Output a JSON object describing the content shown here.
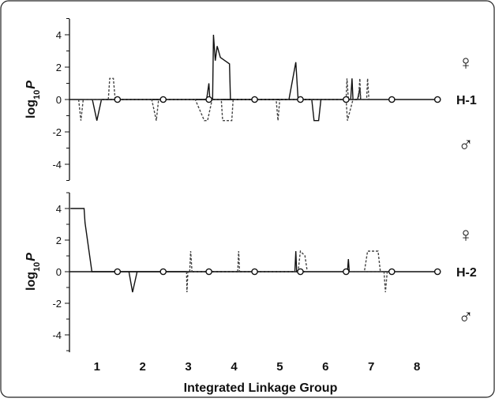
{
  "chart_data": {
    "type": "line",
    "xlabel": "Integrated Linkage Group",
    "groups": [
      "1",
      "2",
      "3",
      "4",
      "5",
      "6",
      "7",
      "8"
    ],
    "female_symbol": "♀",
    "male_symbol": "♂",
    "log_label": {
      "base": "log",
      "sub": "10",
      "var": "P"
    },
    "panels": [
      {
        "label": "H-1",
        "ylim": [
          -5,
          5
        ],
        "yticks": [
          "4",
          "2",
          "0",
          "-2",
          "-4"
        ],
        "series": [
          {
            "name": "female",
            "style": "solid",
            "points": [
              [
                3.4,
                0
              ],
              [
                3.45,
                1.0
              ],
              [
                3.47,
                0
              ],
              [
                3.53,
                0
              ],
              [
                3.55,
                4.0
              ],
              [
                3.59,
                2.4
              ],
              [
                3.63,
                3.3
              ],
              [
                3.7,
                2.6
              ],
              [
                3.8,
                2.4
              ],
              [
                3.9,
                2.2
              ],
              [
                3.92,
                0
              ],
              [
                5.2,
                0
              ],
              [
                5.35,
                2.3
              ],
              [
                5.4,
                0
              ],
              [
                6.55,
                0
              ],
              [
                6.58,
                1.3
              ],
              [
                6.6,
                0
              ],
              [
                6.7,
                0
              ],
              [
                6.75,
                0.7
              ],
              [
                6.77,
                0
              ]
            ]
          },
          {
            "name": "female",
            "style": "dashed",
            "points": [
              [
                1.25,
                0
              ],
              [
                1.28,
                1.3
              ],
              [
                1.36,
                1.3
              ],
              [
                1.4,
                0
              ],
              [
                6.45,
                0
              ],
              [
                6.47,
                1.3
              ],
              [
                6.5,
                0
              ],
              [
                6.72,
                0
              ],
              [
                6.75,
                1.3
              ],
              [
                6.77,
                0
              ],
              [
                6.9,
                0
              ],
              [
                6.92,
                1.3
              ],
              [
                6.95,
                0
              ]
            ]
          },
          {
            "name": "male",
            "style": "solid",
            "points": [
              [
                0.9,
                0
              ],
              [
                1.0,
                -1.3
              ],
              [
                1.1,
                0
              ],
              [
                5.7,
                0
              ],
              [
                5.75,
                -1.3
              ],
              [
                5.85,
                -1.3
              ],
              [
                5.9,
                0
              ]
            ]
          },
          {
            "name": "male",
            "style": "dashed",
            "points": [
              [
                0.6,
                0
              ],
              [
                0.65,
                -1.3
              ],
              [
                0.7,
                0
              ],
              [
                2.2,
                0
              ],
              [
                2.3,
                -1.3
              ],
              [
                2.35,
                0
              ],
              [
                3.15,
                0
              ],
              [
                3.35,
                -1.3
              ],
              [
                3.42,
                -1.3
              ],
              [
                3.52,
                0
              ],
              [
                3.72,
                0
              ],
              [
                3.75,
                -1.3
              ],
              [
                3.95,
                -1.3
              ],
              [
                3.98,
                0
              ],
              [
                4.92,
                0
              ],
              [
                4.96,
                -1.3
              ],
              [
                5.0,
                0
              ],
              [
                6.45,
                0
              ],
              [
                6.48,
                -1.3
              ],
              [
                6.6,
                0
              ]
            ]
          }
        ],
        "markers": [
          1.45,
          2.45,
          3.45,
          4.45,
          5.45,
          6.45,
          7.45,
          8.45
        ]
      },
      {
        "label": "H-2",
        "ylim": [
          -5,
          5
        ],
        "yticks": [
          "4",
          "2",
          "0",
          "-2",
          "-4"
        ],
        "series": [
          {
            "name": "female",
            "style": "solid",
            "points": [
              [
                0.42,
                4.0
              ],
              [
                0.72,
                4.0
              ],
              [
                0.74,
                3.1
              ],
              [
                0.89,
                0
              ],
              [
                5.33,
                0
              ],
              [
                5.35,
                1.3
              ],
              [
                5.37,
                0
              ],
              [
                6.48,
                0
              ],
              [
                6.5,
                0.8
              ],
              [
                6.52,
                0
              ]
            ]
          },
          {
            "name": "female",
            "style": "dashed",
            "points": [
              [
                3.03,
                0
              ],
              [
                3.05,
                1.3
              ],
              [
                3.08,
                0
              ],
              [
                4.08,
                0
              ],
              [
                4.1,
                1.3
              ],
              [
                4.12,
                0
              ],
              [
                5.4,
                0
              ],
              [
                5.45,
                1.3
              ],
              [
                5.55,
                1.0
              ],
              [
                5.6,
                0
              ],
              [
                6.85,
                0
              ],
              [
                6.92,
                1.3
              ],
              [
                7.15,
                1.3
              ],
              [
                7.2,
                0
              ]
            ]
          },
          {
            "name": "male",
            "style": "solid",
            "points": [
              [
                1.7,
                0
              ],
              [
                1.78,
                -1.3
              ],
              [
                1.88,
                0
              ]
            ]
          },
          {
            "name": "male",
            "style": "dashed",
            "points": [
              [
                2.96,
                0
              ],
              [
                2.97,
                -1.3
              ],
              [
                2.99,
                0
              ],
              [
                7.28,
                0
              ],
              [
                7.31,
                -1.3
              ],
              [
                7.35,
                0
              ]
            ]
          }
        ],
        "markers": [
          1.45,
          2.45,
          3.45,
          4.45,
          5.45,
          6.45,
          7.45,
          8.45
        ]
      }
    ]
  },
  "colors": {
    "line": "#111111",
    "dashed": "#444444",
    "frame": "#222222",
    "background": "#ffffff"
  }
}
